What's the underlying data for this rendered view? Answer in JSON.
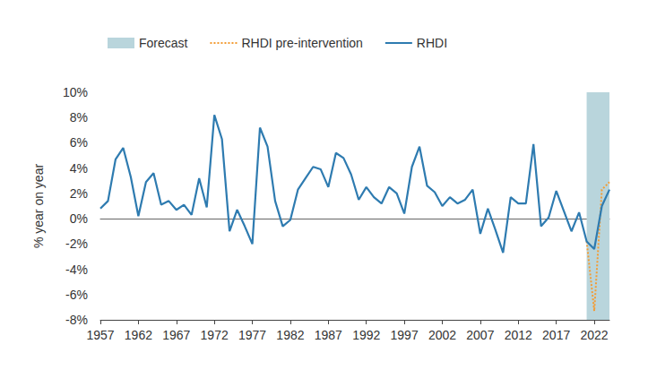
{
  "chart_data": {
    "type": "line",
    "y_label": "% year on year",
    "x": [
      1957,
      1958,
      1959,
      1960,
      1961,
      1962,
      1963,
      1964,
      1965,
      1966,
      1967,
      1968,
      1969,
      1970,
      1971,
      1972,
      1973,
      1974,
      1975,
      1976,
      1977,
      1978,
      1979,
      1980,
      1981,
      1982,
      1983,
      1984,
      1985,
      1986,
      1987,
      1988,
      1989,
      1990,
      1991,
      1992,
      1993,
      1994,
      1995,
      1996,
      1997,
      1998,
      1999,
      2000,
      2001,
      2002,
      2003,
      2004,
      2005,
      2006,
      2007,
      2008,
      2009,
      2010,
      2011,
      2012,
      2013,
      2014,
      2015,
      2016,
      2017,
      2018,
      2019,
      2020,
      2021,
      2022,
      2023,
      2024
    ],
    "series": [
      {
        "name": "RHDI pre-intervention",
        "color": "#f39c34",
        "line_style": "dotted",
        "values": [
          null,
          null,
          null,
          null,
          null,
          null,
          null,
          null,
          null,
          null,
          null,
          null,
          null,
          null,
          null,
          null,
          null,
          null,
          null,
          null,
          null,
          null,
          null,
          null,
          null,
          null,
          null,
          null,
          null,
          null,
          null,
          null,
          null,
          null,
          null,
          null,
          null,
          null,
          null,
          null,
          null,
          null,
          null,
          null,
          null,
          null,
          null,
          null,
          null,
          null,
          null,
          null,
          null,
          null,
          null,
          null,
          null,
          null,
          null,
          null,
          null,
          null,
          null,
          null,
          -1.8,
          -7.3,
          2.3,
          2.9
        ]
      },
      {
        "name": "RHDI",
        "color": "#2e7bb0",
        "line_style": "solid",
        "values": [
          0.8,
          1.4,
          4.7,
          5.6,
          3.3,
          0.2,
          2.9,
          3.6,
          1.1,
          1.4,
          0.7,
          1.1,
          0.3,
          3.2,
          0.9,
          8.2,
          6.3,
          -1.0,
          0.7,
          -0.6,
          -2.0,
          7.2,
          5.7,
          1.4,
          -0.6,
          -0.1,
          2.3,
          3.2,
          4.1,
          3.9,
          2.5,
          5.2,
          4.8,
          3.5,
          1.5,
          2.5,
          1.7,
          1.2,
          2.5,
          2.0,
          0.4,
          4.1,
          5.7,
          2.6,
          2.1,
          1.0,
          1.7,
          1.2,
          1.5,
          2.3,
          -1.2,
          0.8,
          -0.9,
          -2.7,
          1.7,
          1.2,
          1.2,
          5.9,
          -0.6,
          0.1,
          2.2,
          0.6,
          -1.0,
          0.5,
          -1.8,
          -2.4,
          1.0,
          2.3
        ]
      }
    ],
    "forecast": {
      "name": "Forecast",
      "color": "#b9d5dc",
      "range": [
        2021,
        2024
      ]
    },
    "xlim": [
      1957,
      2024
    ],
    "xticks": [
      1957,
      1962,
      1967,
      1972,
      1977,
      1982,
      1987,
      1992,
      1997,
      2002,
      2007,
      2012,
      2017,
      2022
    ],
    "ylim": [
      -8,
      10
    ],
    "yticks": [
      {
        "value": -8,
        "label": "-8%"
      },
      {
        "value": -6,
        "label": "-6%"
      },
      {
        "value": -4,
        "label": "-4%"
      },
      {
        "value": -2,
        "label": "-2%"
      },
      {
        "value": 0,
        "label": "0%"
      },
      {
        "value": 2,
        "label": "2%"
      },
      {
        "value": 4,
        "label": "4%"
      },
      {
        "value": 6,
        "label": "6%"
      },
      {
        "value": 8,
        "label": "8%"
      },
      {
        "value": 10,
        "label": "10%"
      }
    ],
    "grid": false,
    "legend": "top-left"
  }
}
